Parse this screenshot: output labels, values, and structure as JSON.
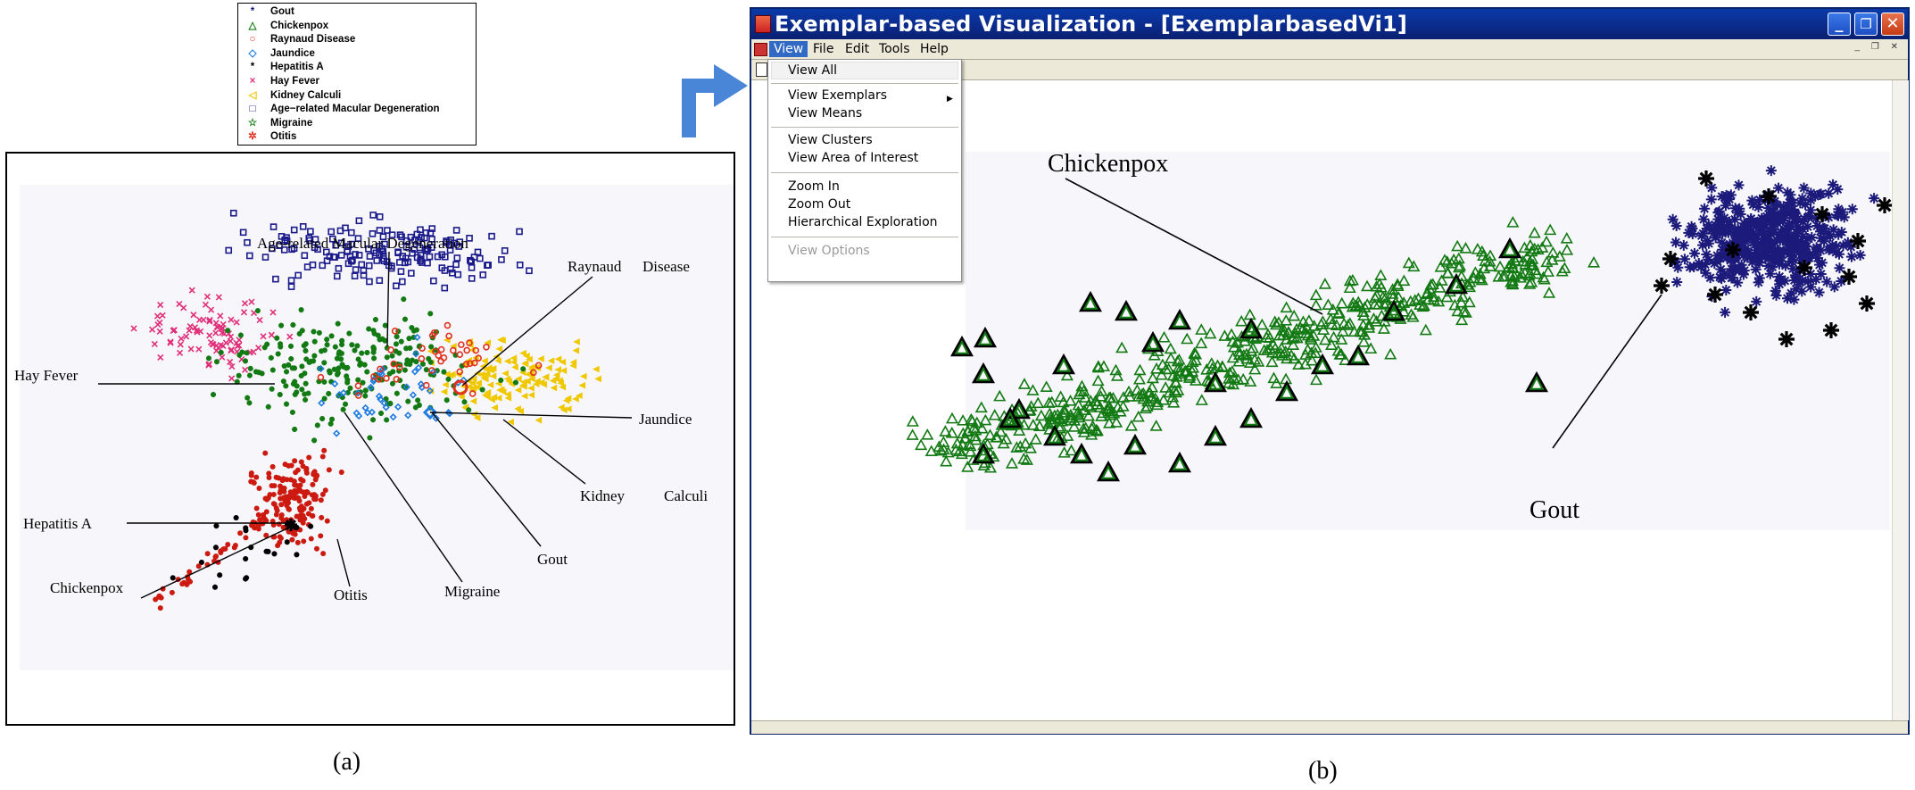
{
  "legend": {
    "items": [
      {
        "label": "Gout",
        "symbol": "*",
        "color": "#1a1a8a"
      },
      {
        "label": "Chickenpox",
        "symbol": "△",
        "color": "#137a13"
      },
      {
        "label": "Raynaud Disease",
        "symbol": "○",
        "color": "#e0301e"
      },
      {
        "label": "Jaundice",
        "symbol": "◇",
        "color": "#1e7be0"
      },
      {
        "label": "Hepatitis A",
        "symbol": "*",
        "color": "#000000"
      },
      {
        "label": "Hay Fever",
        "symbol": "×",
        "color": "#e0307a"
      },
      {
        "label": "Kidney Calculi",
        "symbol": "◁",
        "color": "#f0c800"
      },
      {
        "label": "Age−related Macular Degeneration",
        "symbol": "□",
        "color": "#1a1a8a"
      },
      {
        "label": "Migraine",
        "symbol": "☆",
        "color": "#137a13"
      },
      {
        "label": "Otitis",
        "symbol": "✲",
        "color": "#e0301e"
      }
    ]
  },
  "panel_a": {
    "annotations": {
      "age_related": "Age-related Macular Degeneration",
      "raynaud": "Raynaud",
      "disease": "Disease",
      "hay_fever": "Hay Fever",
      "jaundice": "Jaundice",
      "kidney": "Kidney",
      "calculi": "Calculi",
      "hepatitis": "Hepatitis A",
      "gout": "Gout",
      "chickenpox": "Chickenpox",
      "otitis": "Otitis",
      "migraine": "Migraine"
    },
    "caption": "(a)"
  },
  "window": {
    "title": "Exemplar-based Visualization - [ExemplarbasedVi1]",
    "buttons": {
      "minimize": "_",
      "maximize": "❐",
      "close": "✕"
    },
    "menu": [
      "View",
      "File",
      "Edit",
      "Tools",
      "Help"
    ],
    "dropdown": {
      "view_all": "View All",
      "view_exemplars": "View Exemplars",
      "view_means": "View Means",
      "view_clusters": "View Clusters",
      "view_area": "View Area of Interest",
      "zoom_in": "Zoom In",
      "zoom_out": "Zoom Out",
      "hierarchical": "Hierarchical Exploration",
      "view_options": "View Options"
    }
  },
  "panel_b": {
    "annotations": {
      "chickenpox": "Chickenpox",
      "gout": "Gout"
    },
    "caption": "(b)"
  },
  "colors": {
    "gout": "#1c1a7a",
    "chickenpox": "#137a13",
    "raynaud": "#e0301e",
    "jaundice": "#1e7be0",
    "hay_fever": "#e0307a",
    "kidney": "#f0c800",
    "amd": "#1a1a8a",
    "hepatitis": "#000000",
    "otitis": "#cc1a10",
    "arrow": "#4a86d8",
    "titlebar": "#0b2a8a"
  }
}
